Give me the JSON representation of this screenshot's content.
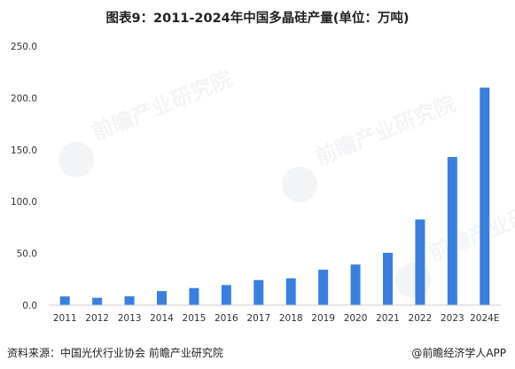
{
  "title": "图表9：2011-2024年中国多晶硅产量(单位：万吨)",
  "source": "资料来源：中国光伏行业协会 前瞻产业研究院",
  "brand": "@前瞻经济学人APP",
  "watermark_text": "前瞻产业研究院",
  "colors": {
    "bar": "#3a7fe0",
    "axis": "#cccccc",
    "watermark": "#e4e8ec"
  },
  "chart_data": {
    "type": "bar",
    "title": "图表9：2011-2024年中国多晶硅产量(单位：万吨)",
    "xlabel": "",
    "ylabel": "",
    "ylim": [
      0,
      250
    ],
    "y_ticks": [
      "0.0",
      "50.0",
      "100.0",
      "150.0",
      "200.0",
      "250.0"
    ],
    "categories": [
      "2011",
      "2012",
      "2013",
      "2014",
      "2015",
      "2016",
      "2017",
      "2018",
      "2019",
      "2020",
      "2021",
      "2022",
      "2023",
      "2024E"
    ],
    "values": [
      8.4,
      7.1,
      8.5,
      13.6,
      16.5,
      19.4,
      24.2,
      25.9,
      34.2,
      39.2,
      50.5,
      82.7,
      143.0,
      210.0
    ],
    "grid": false,
    "legend": "none"
  }
}
